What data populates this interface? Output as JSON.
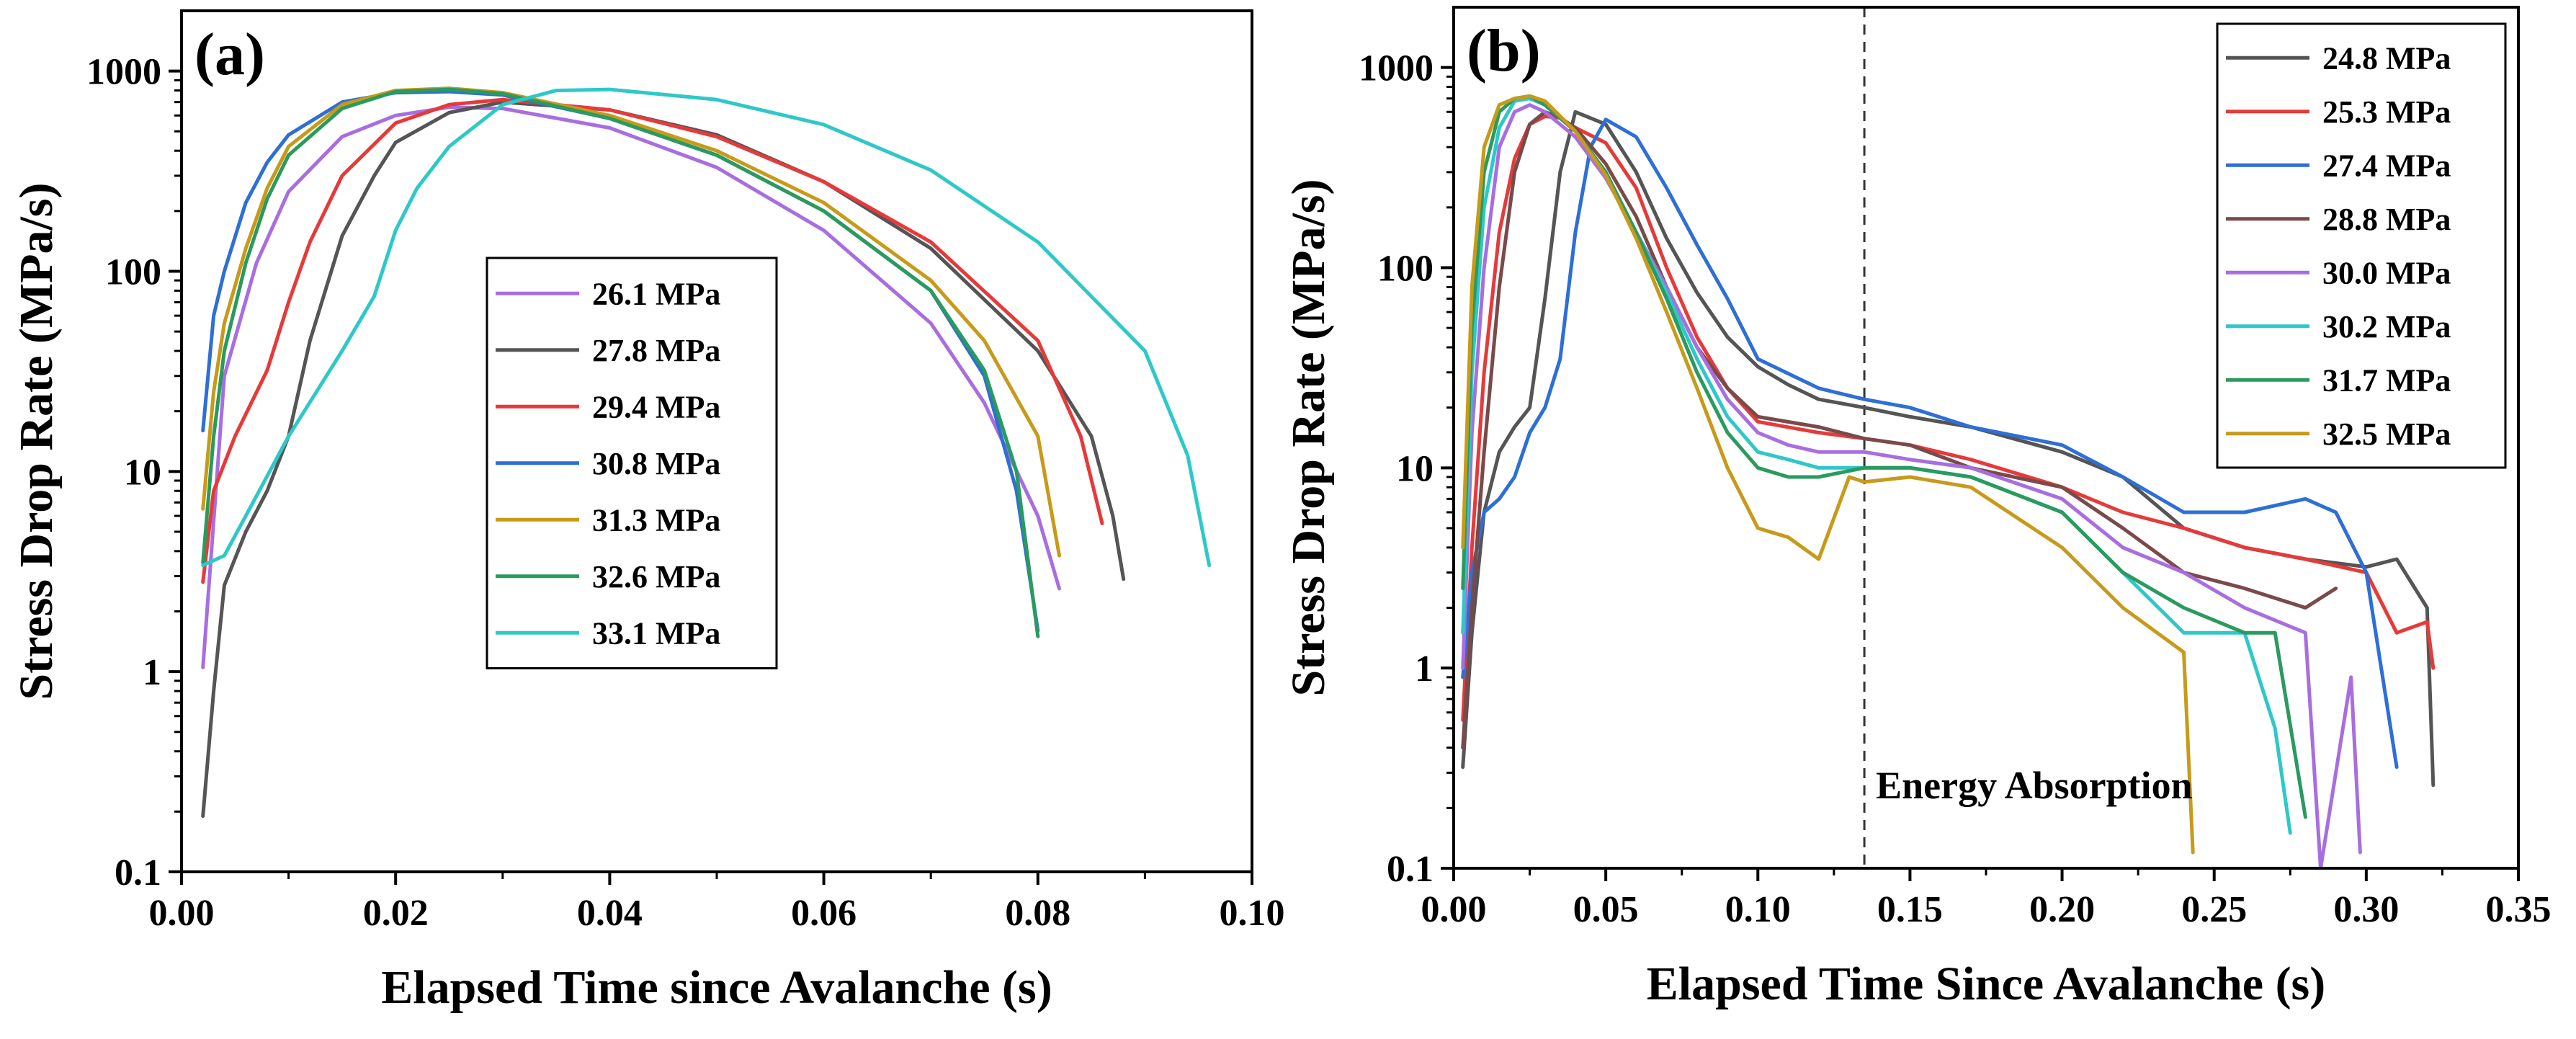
{
  "chart_data": [
    {
      "type": "line",
      "panel_label": "(a)",
      "xlabel": "Elapsed Time since Avalanche (s)",
      "ylabel": "Stress Drop Rate (MPa/s)",
      "xscale": "linear",
      "yscale": "log",
      "xlim": [
        0.0,
        0.1
      ],
      "ylim": [
        0.1,
        2000
      ],
      "xticks": [
        0.0,
        0.02,
        0.04,
        0.06,
        0.08,
        0.1
      ],
      "xtick_labels": [
        "0.00",
        "0.02",
        "0.04",
        "0.06",
        "0.08",
        "0.10"
      ],
      "yticks": [
        0.1,
        1,
        10,
        100,
        1000
      ],
      "ytick_labels": [
        "0.1",
        "1",
        "10",
        "100",
        "1000"
      ],
      "legend_position": "center",
      "series": [
        {
          "name": "26.1 MPa",
          "color": "#a86ee0",
          "x": [
            0.002,
            0.004,
            0.007,
            0.01,
            0.015,
            0.02,
            0.025,
            0.03,
            0.04,
            0.05,
            0.06,
            0.07,
            0.075,
            0.08,
            0.082
          ],
          "y": [
            1.05,
            30,
            110,
            250,
            470,
            600,
            660,
            650,
            520,
            330,
            160,
            55,
            22,
            6,
            2.6
          ]
        },
        {
          "name": "27.8 MPa",
          "color": "#555555",
          "x": [
            0.002,
            0.003,
            0.004,
            0.006,
            0.008,
            0.01,
            0.012,
            0.015,
            0.018,
            0.02,
            0.025,
            0.03,
            0.04,
            0.05,
            0.06,
            0.07,
            0.08,
            0.085,
            0.087,
            0.088
          ],
          "y": [
            0.19,
            0.8,
            2.7,
            5,
            8,
            15,
            45,
            150,
            300,
            440,
            620,
            700,
            640,
            480,
            280,
            130,
            40,
            15,
            6,
            2.9
          ]
        },
        {
          "name": "29.4 MPa",
          "color": "#e63a3a",
          "x": [
            0.002,
            0.003,
            0.005,
            0.008,
            0.01,
            0.012,
            0.015,
            0.02,
            0.025,
            0.03,
            0.04,
            0.05,
            0.06,
            0.07,
            0.08,
            0.084,
            0.086
          ],
          "y": [
            2.8,
            8,
            15,
            32,
            70,
            140,
            300,
            550,
            680,
            720,
            640,
            470,
            280,
            140,
            45,
            15,
            5.5
          ]
        },
        {
          "name": "30.8 MPa",
          "color": "#2e6fd6",
          "x": [
            0.002,
            0.003,
            0.004,
            0.006,
            0.008,
            0.01,
            0.015,
            0.02,
            0.025,
            0.03,
            0.04,
            0.05,
            0.06,
            0.07,
            0.075,
            0.078,
            0.08
          ],
          "y": [
            16,
            60,
            100,
            220,
            350,
            480,
            700,
            780,
            790,
            760,
            580,
            380,
            200,
            80,
            30,
            8,
            1.6
          ]
        },
        {
          "name": "31.3 MPa",
          "color": "#c89a1a",
          "x": [
            0.002,
            0.003,
            0.004,
            0.006,
            0.008,
            0.01,
            0.015,
            0.02,
            0.025,
            0.03,
            0.04,
            0.05,
            0.06,
            0.07,
            0.075,
            0.08,
            0.082
          ],
          "y": [
            6.5,
            25,
            55,
            130,
            260,
            420,
            680,
            800,
            820,
            780,
            600,
            400,
            220,
            90,
            45,
            15,
            3.8
          ]
        },
        {
          "name": "32.6 MPa",
          "color": "#2a9a5e",
          "x": [
            0.002,
            0.003,
            0.004,
            0.006,
            0.008,
            0.01,
            0.015,
            0.02,
            0.025,
            0.03,
            0.04,
            0.05,
            0.06,
            0.07,
            0.075,
            0.078,
            0.08
          ],
          "y": [
            3.5,
            15,
            40,
            110,
            230,
            380,
            650,
            790,
            810,
            770,
            580,
            380,
            200,
            80,
            32,
            10,
            1.5
          ]
        },
        {
          "name": "33.1 MPa",
          "color": "#2ec8c8",
          "x": [
            0.002,
            0.004,
            0.006,
            0.01,
            0.015,
            0.018,
            0.02,
            0.022,
            0.025,
            0.03,
            0.035,
            0.04,
            0.05,
            0.06,
            0.07,
            0.08,
            0.09,
            0.094,
            0.096
          ],
          "y": [
            3.4,
            3.8,
            6,
            15,
            40,
            75,
            160,
            260,
            420,
            680,
            800,
            810,
            720,
            540,
            320,
            140,
            40,
            12,
            3.4
          ]
        }
      ]
    },
    {
      "type": "line",
      "panel_label": "(b)",
      "xlabel": "Elapsed Time Since Avalanche (s)",
      "ylabel": "Stress Drop Rate (MPa/s)",
      "xscale": "linear",
      "yscale": "log",
      "xlim": [
        0.0,
        0.35
      ],
      "ylim": [
        0.1,
        2000
      ],
      "xticks": [
        0.0,
        0.05,
        0.1,
        0.15,
        0.2,
        0.25,
        0.3,
        0.35
      ],
      "xtick_labels": [
        "0.00",
        "0.05",
        "0.10",
        "0.15",
        "0.20",
        "0.25",
        "0.30",
        "0.35"
      ],
      "yticks": [
        0.1,
        1,
        10,
        100,
        1000
      ],
      "ytick_labels": [
        "0.1",
        "1",
        "10",
        "100",
        "1000"
      ],
      "legend_position": "top-right",
      "vline": {
        "x": 0.135,
        "style": "dashed"
      },
      "annotation": "Energy Absorption",
      "series": [
        {
          "name": "24.8 MPa",
          "color": "#555555",
          "x": [
            0.003,
            0.006,
            0.01,
            0.015,
            0.02,
            0.025,
            0.03,
            0.035,
            0.04,
            0.05,
            0.06,
            0.07,
            0.08,
            0.09,
            0.1,
            0.11,
            0.12,
            0.135,
            0.15,
            0.17,
            0.2,
            0.22,
            0.24,
            0.26,
            0.28,
            0.3,
            0.31,
            0.32,
            0.322
          ],
          "y": [
            0.32,
            1.5,
            6,
            12,
            16,
            20,
            70,
            300,
            600,
            520,
            300,
            140,
            75,
            45,
            32,
            26,
            22,
            20,
            18,
            16,
            12,
            9,
            5,
            4,
            3.5,
            3.2,
            3.5,
            2,
            0.26
          ]
        },
        {
          "name": "25.3 MPa",
          "color": "#e63a3a",
          "x": [
            0.003,
            0.006,
            0.01,
            0.015,
            0.02,
            0.025,
            0.03,
            0.035,
            0.04,
            0.05,
            0.06,
            0.07,
            0.08,
            0.09,
            0.1,
            0.12,
            0.135,
            0.15,
            0.17,
            0.2,
            0.22,
            0.24,
            0.26,
            0.28,
            0.3,
            0.31,
            0.32,
            0.322
          ],
          "y": [
            0.55,
            4,
            30,
            150,
            350,
            520,
            570,
            560,
            500,
            420,
            250,
            100,
            45,
            25,
            17,
            15,
            14,
            13,
            11,
            8,
            6,
            5,
            4,
            3.5,
            3,
            1.5,
            1.7,
            1.0
          ]
        },
        {
          "name": "27.4 MPa",
          "color": "#2e6fd6",
          "x": [
            0.003,
            0.006,
            0.01,
            0.015,
            0.02,
            0.025,
            0.03,
            0.035,
            0.04,
            0.045,
            0.05,
            0.06,
            0.07,
            0.08,
            0.09,
            0.1,
            0.12,
            0.135,
            0.15,
            0.17,
            0.2,
            0.22,
            0.24,
            0.26,
            0.28,
            0.29,
            0.3,
            0.31
          ],
          "y": [
            0.9,
            3,
            6,
            7,
            9,
            15,
            20,
            35,
            150,
            400,
            550,
            450,
            250,
            130,
            70,
            35,
            25,
            22,
            20,
            16,
            13,
            9,
            6,
            6,
            7,
            6,
            3,
            0.32
          ]
        },
        {
          "name": "28.8 MPa",
          "color": "#7a4a4a",
          "x": [
            0.003,
            0.006,
            0.01,
            0.015,
            0.02,
            0.025,
            0.03,
            0.035,
            0.04,
            0.05,
            0.06,
            0.07,
            0.08,
            0.09,
            0.1,
            0.12,
            0.135,
            0.15,
            0.17,
            0.2,
            0.22,
            0.24,
            0.26,
            0.28,
            0.29
          ],
          "y": [
            0.4,
            2,
            12,
            80,
            300,
            520,
            600,
            560,
            500,
            330,
            180,
            80,
            40,
            25,
            18,
            16,
            14,
            13,
            10,
            8,
            5,
            3,
            2.5,
            2,
            2.5
          ]
        },
        {
          "name": "30.0 MPa",
          "color": "#a86ee0",
          "x": [
            0.003,
            0.006,
            0.01,
            0.015,
            0.02,
            0.025,
            0.03,
            0.04,
            0.05,
            0.06,
            0.07,
            0.08,
            0.09,
            0.1,
            0.11,
            0.12,
            0.135,
            0.15,
            0.17,
            0.2,
            0.22,
            0.24,
            0.26,
            0.28,
            0.285,
            0.29,
            0.295,
            0.298
          ],
          "y": [
            1,
            15,
            100,
            400,
            600,
            650,
            600,
            450,
            280,
            150,
            80,
            40,
            22,
            15,
            13,
            12,
            12,
            11,
            10,
            7,
            4,
            3,
            2,
            1.5,
            0.1,
            0.3,
            0.9,
            0.12
          ]
        },
        {
          "name": "30.2 MPa",
          "color": "#2ec8c8",
          "x": [
            0.003,
            0.006,
            0.01,
            0.015,
            0.02,
            0.025,
            0.03,
            0.04,
            0.05,
            0.06,
            0.07,
            0.08,
            0.09,
            0.1,
            0.11,
            0.12,
            0.135,
            0.15,
            0.17,
            0.2,
            0.22,
            0.24,
            0.26,
            0.27,
            0.275
          ],
          "y": [
            1.5,
            30,
            200,
            500,
            680,
            700,
            650,
            480,
            300,
            150,
            75,
            35,
            18,
            12,
            11,
            10,
            10,
            10,
            9,
            6,
            3,
            1.5,
            1.5,
            0.5,
            0.15
          ]
        },
        {
          "name": "31.7 MPa",
          "color": "#2a9a5e",
          "x": [
            0.003,
            0.006,
            0.01,
            0.015,
            0.02,
            0.025,
            0.03,
            0.04,
            0.05,
            0.06,
            0.07,
            0.08,
            0.09,
            0.1,
            0.11,
            0.12,
            0.135,
            0.15,
            0.17,
            0.2,
            0.22,
            0.24,
            0.26,
            0.27,
            0.28
          ],
          "y": [
            2.5,
            50,
            300,
            600,
            700,
            720,
            650,
            480,
            300,
            150,
            70,
            30,
            15,
            10,
            9,
            9,
            10,
            10,
            9,
            6,
            3,
            2,
            1.5,
            1.5,
            0.18
          ]
        },
        {
          "name": "32.5 MPa",
          "color": "#c89a1a",
          "x": [
            0.003,
            0.006,
            0.01,
            0.015,
            0.02,
            0.025,
            0.03,
            0.04,
            0.05,
            0.06,
            0.07,
            0.08,
            0.09,
            0.1,
            0.11,
            0.12,
            0.13,
            0.135,
            0.15,
            0.17,
            0.2,
            0.22,
            0.24,
            0.243
          ],
          "y": [
            4,
            80,
            400,
            650,
            700,
            720,
            680,
            480,
            290,
            140,
            60,
            25,
            10,
            5,
            4.5,
            3.5,
            9,
            8.5,
            9,
            8,
            4,
            2,
            1.2,
            0.12
          ]
        }
      ]
    }
  ]
}
